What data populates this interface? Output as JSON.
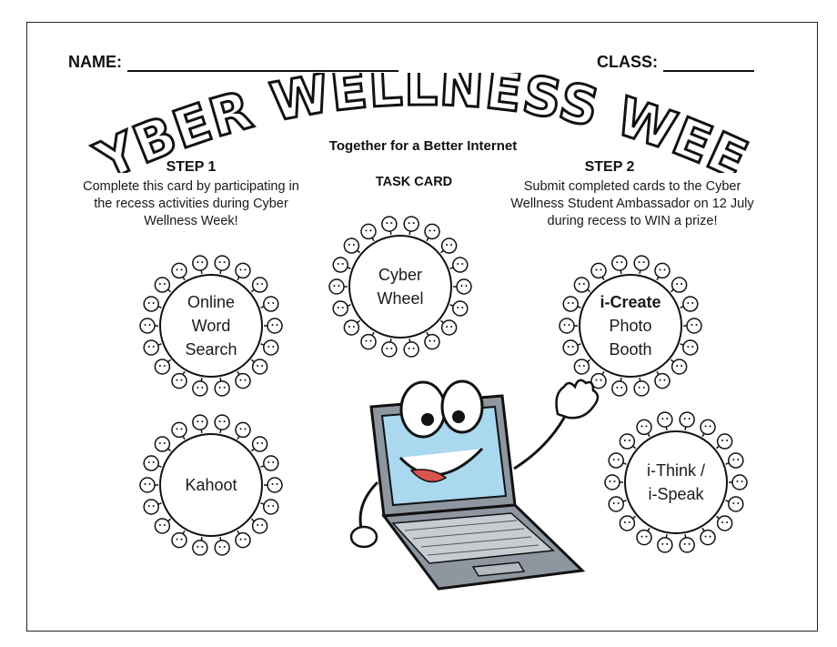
{
  "header": {
    "name_label": "NAME:",
    "class_label": "CLASS:"
  },
  "banner": {
    "title": "CYBER WELLNESS WEEK",
    "subtitle": "Together for a Better Internet"
  },
  "task_card_label": "TASK CARD",
  "step1": {
    "heading": "STEP 1",
    "lines": [
      "Complete this card by participating in",
      "the recess activities during Cyber",
      "Wellness Week!"
    ]
  },
  "step2": {
    "heading": "STEP 2",
    "lines": [
      "Submit completed cards to the Cyber",
      "Wellness Student Ambassador on 12 July",
      "during recess to WIN a prize!"
    ]
  },
  "activities": [
    {
      "lines": [
        "Online",
        "Word",
        "Search"
      ]
    },
    {
      "lines": [
        "Cyber",
        "Wheel"
      ]
    },
    {
      "lines": [
        "i-Create",
        "Photo",
        "Booth"
      ]
    },
    {
      "lines": [
        "Kahoot"
      ]
    },
    {
      "lines": [
        "i-Think /",
        "i-Speak"
      ]
    }
  ],
  "icons": {
    "ring_decoration": "children-ring-icon",
    "mascot": "laptop-mascot-icon"
  },
  "colors": {
    "laptop_body": "#8e96a0",
    "laptop_screen": "#a9d8ef",
    "mouth": "#d9534f",
    "outline": "#111111"
  }
}
